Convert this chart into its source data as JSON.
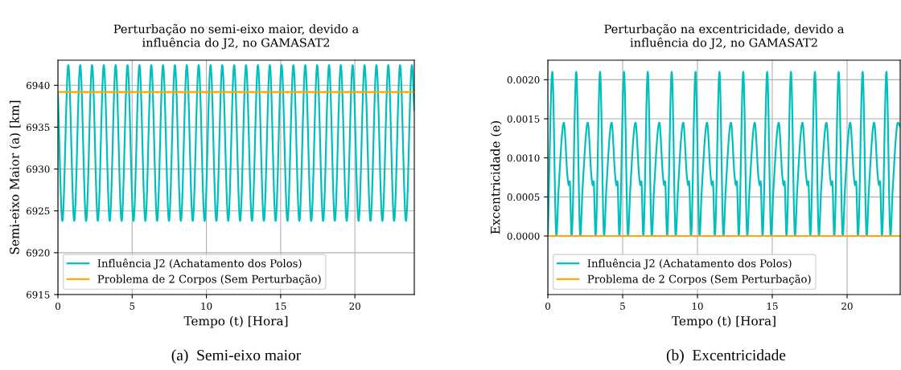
{
  "chart_data": [
    {
      "type": "line",
      "title": "Perturbação no semi-eixo maior, devido a\ninfluência do J2, no GAMASAT2",
      "xlabel": "Tempo (t) [Hora]",
      "ylabel": "Semi-eixo Maior (a) [km]",
      "xlim": [
        0,
        24
      ],
      "ylim": [
        6915,
        6943
      ],
      "xticks": [
        0,
        5,
        10,
        15,
        20
      ],
      "yticks": [
        6915,
        6920,
        6925,
        6930,
        6935,
        6940
      ],
      "grid": true,
      "legend": "bottom left",
      "line_style": "solid",
      "marker": "none",
      "series": [
        {
          "name": "Influência J2 (Achatamento dos Polos)",
          "color": "#00bfbf",
          "x": [
            0,
            0.3,
            0.7,
            1.1,
            1.5,
            1.9,
            2.3,
            2.69,
            3.09,
            3.49,
            3.89,
            4.29,
            4.69,
            5.09,
            5.49,
            5.89,
            6.29,
            6.68,
            7.08,
            7.48,
            7.88,
            8.28,
            8.68,
            9.08,
            9.48,
            9.88,
            10.28,
            10.67,
            11.07,
            11.47,
            11.87,
            12.27,
            12.67,
            13.07,
            13.47,
            13.87,
            14.27,
            14.66,
            15.06,
            15.46,
            15.86,
            16.26,
            16.66,
            17.06,
            17.46,
            17.86,
            18.26,
            18.65,
            19.05,
            19.45,
            19.85,
            20.25,
            20.65,
            21.05,
            21.45,
            21.85,
            22.25,
            22.64,
            23.04,
            23.44,
            23.84,
            24
          ],
          "values": [
            6939,
            6923.8,
            6942.4,
            6923.8,
            6942.4,
            6923.8,
            6942.4,
            6923.8,
            6942.4,
            6923.8,
            6942.4,
            6923.8,
            6942.4,
            6923.8,
            6942.4,
            6923.8,
            6942.4,
            6923.8,
            6942.4,
            6923.8,
            6942.4,
            6923.8,
            6942.4,
            6923.8,
            6942.4,
            6923.8,
            6942.4,
            6923.8,
            6942.4,
            6923.8,
            6942.4,
            6923.8,
            6942.4,
            6923.8,
            6942.4,
            6923.8,
            6942.4,
            6923.8,
            6942.4,
            6923.8,
            6942.4,
            6923.8,
            6942.4,
            6923.8,
            6942.4,
            6923.8,
            6942.4,
            6923.8,
            6942.4,
            6923.8,
            6942.4,
            6923.8,
            6942.4,
            6923.8,
            6942.4,
            6923.8,
            6942.4,
            6923.8,
            6942.4,
            6923.8,
            6942.4,
            6937
          ]
        },
        {
          "name": "Problema de 2 Corpos (Sem Perturbação)",
          "color": "#ffa500",
          "x": [
            0,
            24
          ],
          "values": [
            6939.2,
            6939.2
          ]
        }
      ],
      "annotations": [
        "(a)  Semi-eixo maior"
      ]
    },
    {
      "type": "line",
      "title": "Perturbação na excentricidade, devido a\ninfluência do J2, no GAMASAT2",
      "xlabel": "Tempo (t) [Hora]",
      "ylabel": "Excentricidade (e)",
      "xlim": [
        0,
        23.55
      ],
      "ylim": [
        -0.00075,
        0.00225
      ],
      "xticks": [
        0,
        5,
        10,
        15,
        20
      ],
      "yticks": [
        {
          "value": 0,
          "label": "0.0000"
        },
        {
          "value": 0.0005,
          "label": "0.0005"
        },
        {
          "value": 0.001,
          "label": "0.0010"
        },
        {
          "value": 0.0015,
          "label": "0.0015"
        },
        {
          "value": 0.002,
          "label": "0.0020"
        }
      ],
      "grid": true,
      "legend": "bottom left",
      "line_style": "solid",
      "marker": "none",
      "series": [
        {
          "name": "Influência J2 (Achatamento dos Polos)",
          "color": "#00bfbf",
          "x": [
            0,
            0.3,
            0.57,
            0.72,
            1.07,
            1.32,
            1.4,
            1.46,
            1.59,
            1.9,
            2.17,
            2.32,
            2.67,
            2.92,
            3.0,
            3.06,
            3.19,
            3.49,
            3.76,
            3.91,
            4.26,
            4.51,
            4.59,
            4.65,
            4.78,
            5.09,
            5.36,
            5.51,
            5.86,
            6.11,
            6.19,
            6.25,
            6.38,
            6.68,
            6.95,
            7.1,
            7.45,
            7.7,
            7.78,
            7.84,
            7.97,
            8.28,
            8.55,
            8.7,
            9.05,
            9.3,
            9.38,
            9.44,
            9.57,
            9.87,
            10.14,
            10.29,
            10.64,
            10.89,
            10.97,
            11.03,
            11.16,
            11.47,
            11.74,
            11.89,
            12.24,
            12.49,
            12.57,
            12.63,
            12.76,
            13.06,
            13.33,
            13.48,
            13.83,
            14.08,
            14.16,
            14.22,
            14.35,
            14.66,
            14.93,
            15.08,
            15.43,
            15.68,
            15.76,
            15.82,
            15.95,
            16.25,
            16.52,
            16.67,
            17.02,
            17.27,
            17.35,
            17.41,
            17.54,
            17.85,
            18.12,
            18.27,
            18.62,
            18.87,
            18.95,
            19.01,
            19.14,
            19.44,
            19.71,
            19.86,
            20.21,
            20.46,
            20.54,
            20.6,
            20.73,
            21.04,
            21.31,
            21.46,
            21.81,
            22.06,
            22.14,
            22.2,
            22.33,
            22.63,
            22.9,
            23.05,
            23.4,
            23.55
          ],
          "values": [
            0,
            0.0021,
            0,
            0.0006,
            0.00145,
            0.00075,
            0.00065,
            0.0007,
            0,
            0.0021,
            0,
            0.0006,
            0.00145,
            0.00075,
            0.00065,
            0.0007,
            0,
            0.0021,
            0,
            0.0006,
            0.00145,
            0.00075,
            0.00065,
            0.0007,
            0,
            0.0021,
            0,
            0.0006,
            0.00145,
            0.00075,
            0.00065,
            0.0007,
            0,
            0.0021,
            0,
            0.0006,
            0.00145,
            0.00075,
            0.00065,
            0.0007,
            0,
            0.0021,
            0,
            0.0006,
            0.00145,
            0.00075,
            0.00065,
            0.0007,
            0,
            0.0021,
            0,
            0.0006,
            0.00145,
            0.00075,
            0.00065,
            0.0007,
            0,
            0.0021,
            0,
            0.0006,
            0.00145,
            0.00075,
            0.00065,
            0.0007,
            0,
            0.0021,
            0,
            0.0006,
            0.00145,
            0.00075,
            0.00065,
            0.0007,
            0,
            0.0021,
            0,
            0.0006,
            0.00145,
            0.00075,
            0.00065,
            0.0007,
            0,
            0.0021,
            0,
            0.0006,
            0.00145,
            0.00075,
            0.00065,
            0.0007,
            0,
            0.0021,
            0,
            0.0006,
            0.00145,
            0.00075,
            0.00065,
            0.0007,
            0,
            0.0021,
            0,
            0.0006,
            0.00145,
            0.00075,
            0.00065,
            0.0007,
            0,
            0.0021,
            0,
            0.0006,
            0.00145,
            0.00075,
            0.00065,
            0.0007,
            0,
            0.0021,
            0,
            0.0006,
            0.00145,
            0.0014
          ]
        },
        {
          "name": "Problema de 2 Corpos (Sem Perturbação)",
          "color": "#ffa500",
          "x": [
            0,
            23.55
          ],
          "values": [
            0,
            0
          ]
        }
      ],
      "annotations": [
        "(b)  Excentricidade"
      ]
    }
  ]
}
